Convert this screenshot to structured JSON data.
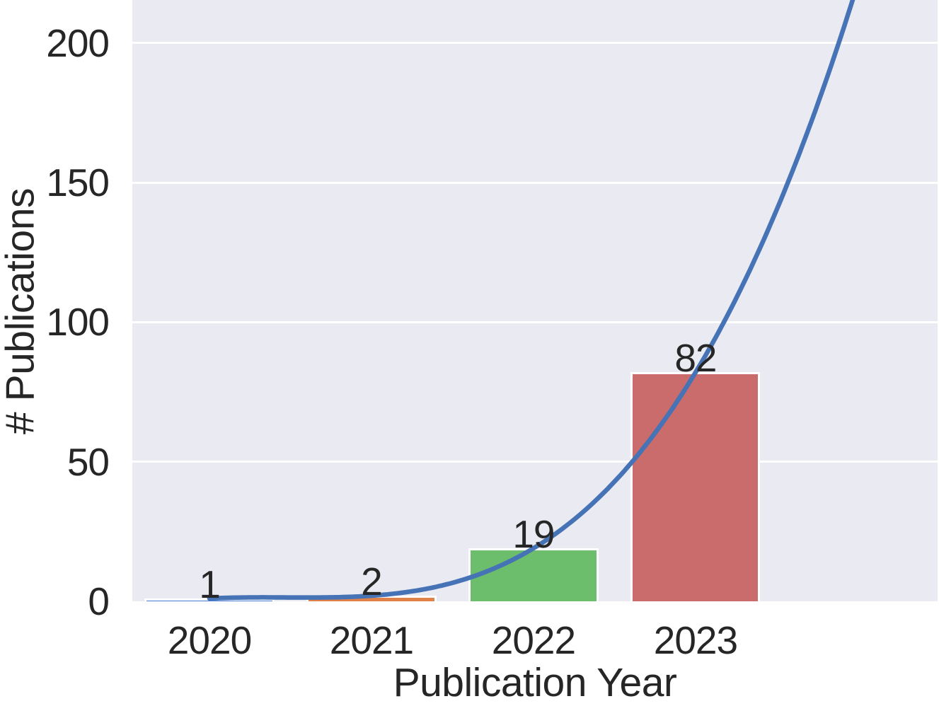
{
  "chart_data": {
    "type": "bar",
    "title": "",
    "xlabel": "Publication Year",
    "ylabel": "# Publications",
    "categories": [
      "2020",
      "2021",
      "2022",
      "2023"
    ],
    "values": [
      1,
      2,
      19,
      82
    ],
    "bar_labels": [
      "1",
      "2",
      "19",
      "82"
    ],
    "bar_colors": [
      "#4878d0",
      "#e08149",
      "#6cbd6c",
      "#c96c6b"
    ],
    "bar_edge_color": "#ffffff",
    "bar_width_fraction": 0.8,
    "yticks": [
      0,
      50,
      100,
      150,
      200
    ],
    "ytick_labels": [
      "0",
      "50",
      "100",
      "150",
      "200"
    ],
    "ylim": [
      0,
      215.4
    ],
    "xlim": [
      -0.476,
      4.494
    ],
    "grid": "horizontal",
    "legend": "none",
    "plot_background": "#eaeaf2",
    "grid_color": "#ffffff",
    "text_color": "#262626",
    "trend_line": {
      "name": "cubic-fit-trend",
      "color": "#4673b5",
      "stroke_width": 6.5,
      "poly_coefficients": [
        5,
        -7,
        3,
        1
      ],
      "x_domain": [
        0,
        3.99
      ]
    }
  }
}
